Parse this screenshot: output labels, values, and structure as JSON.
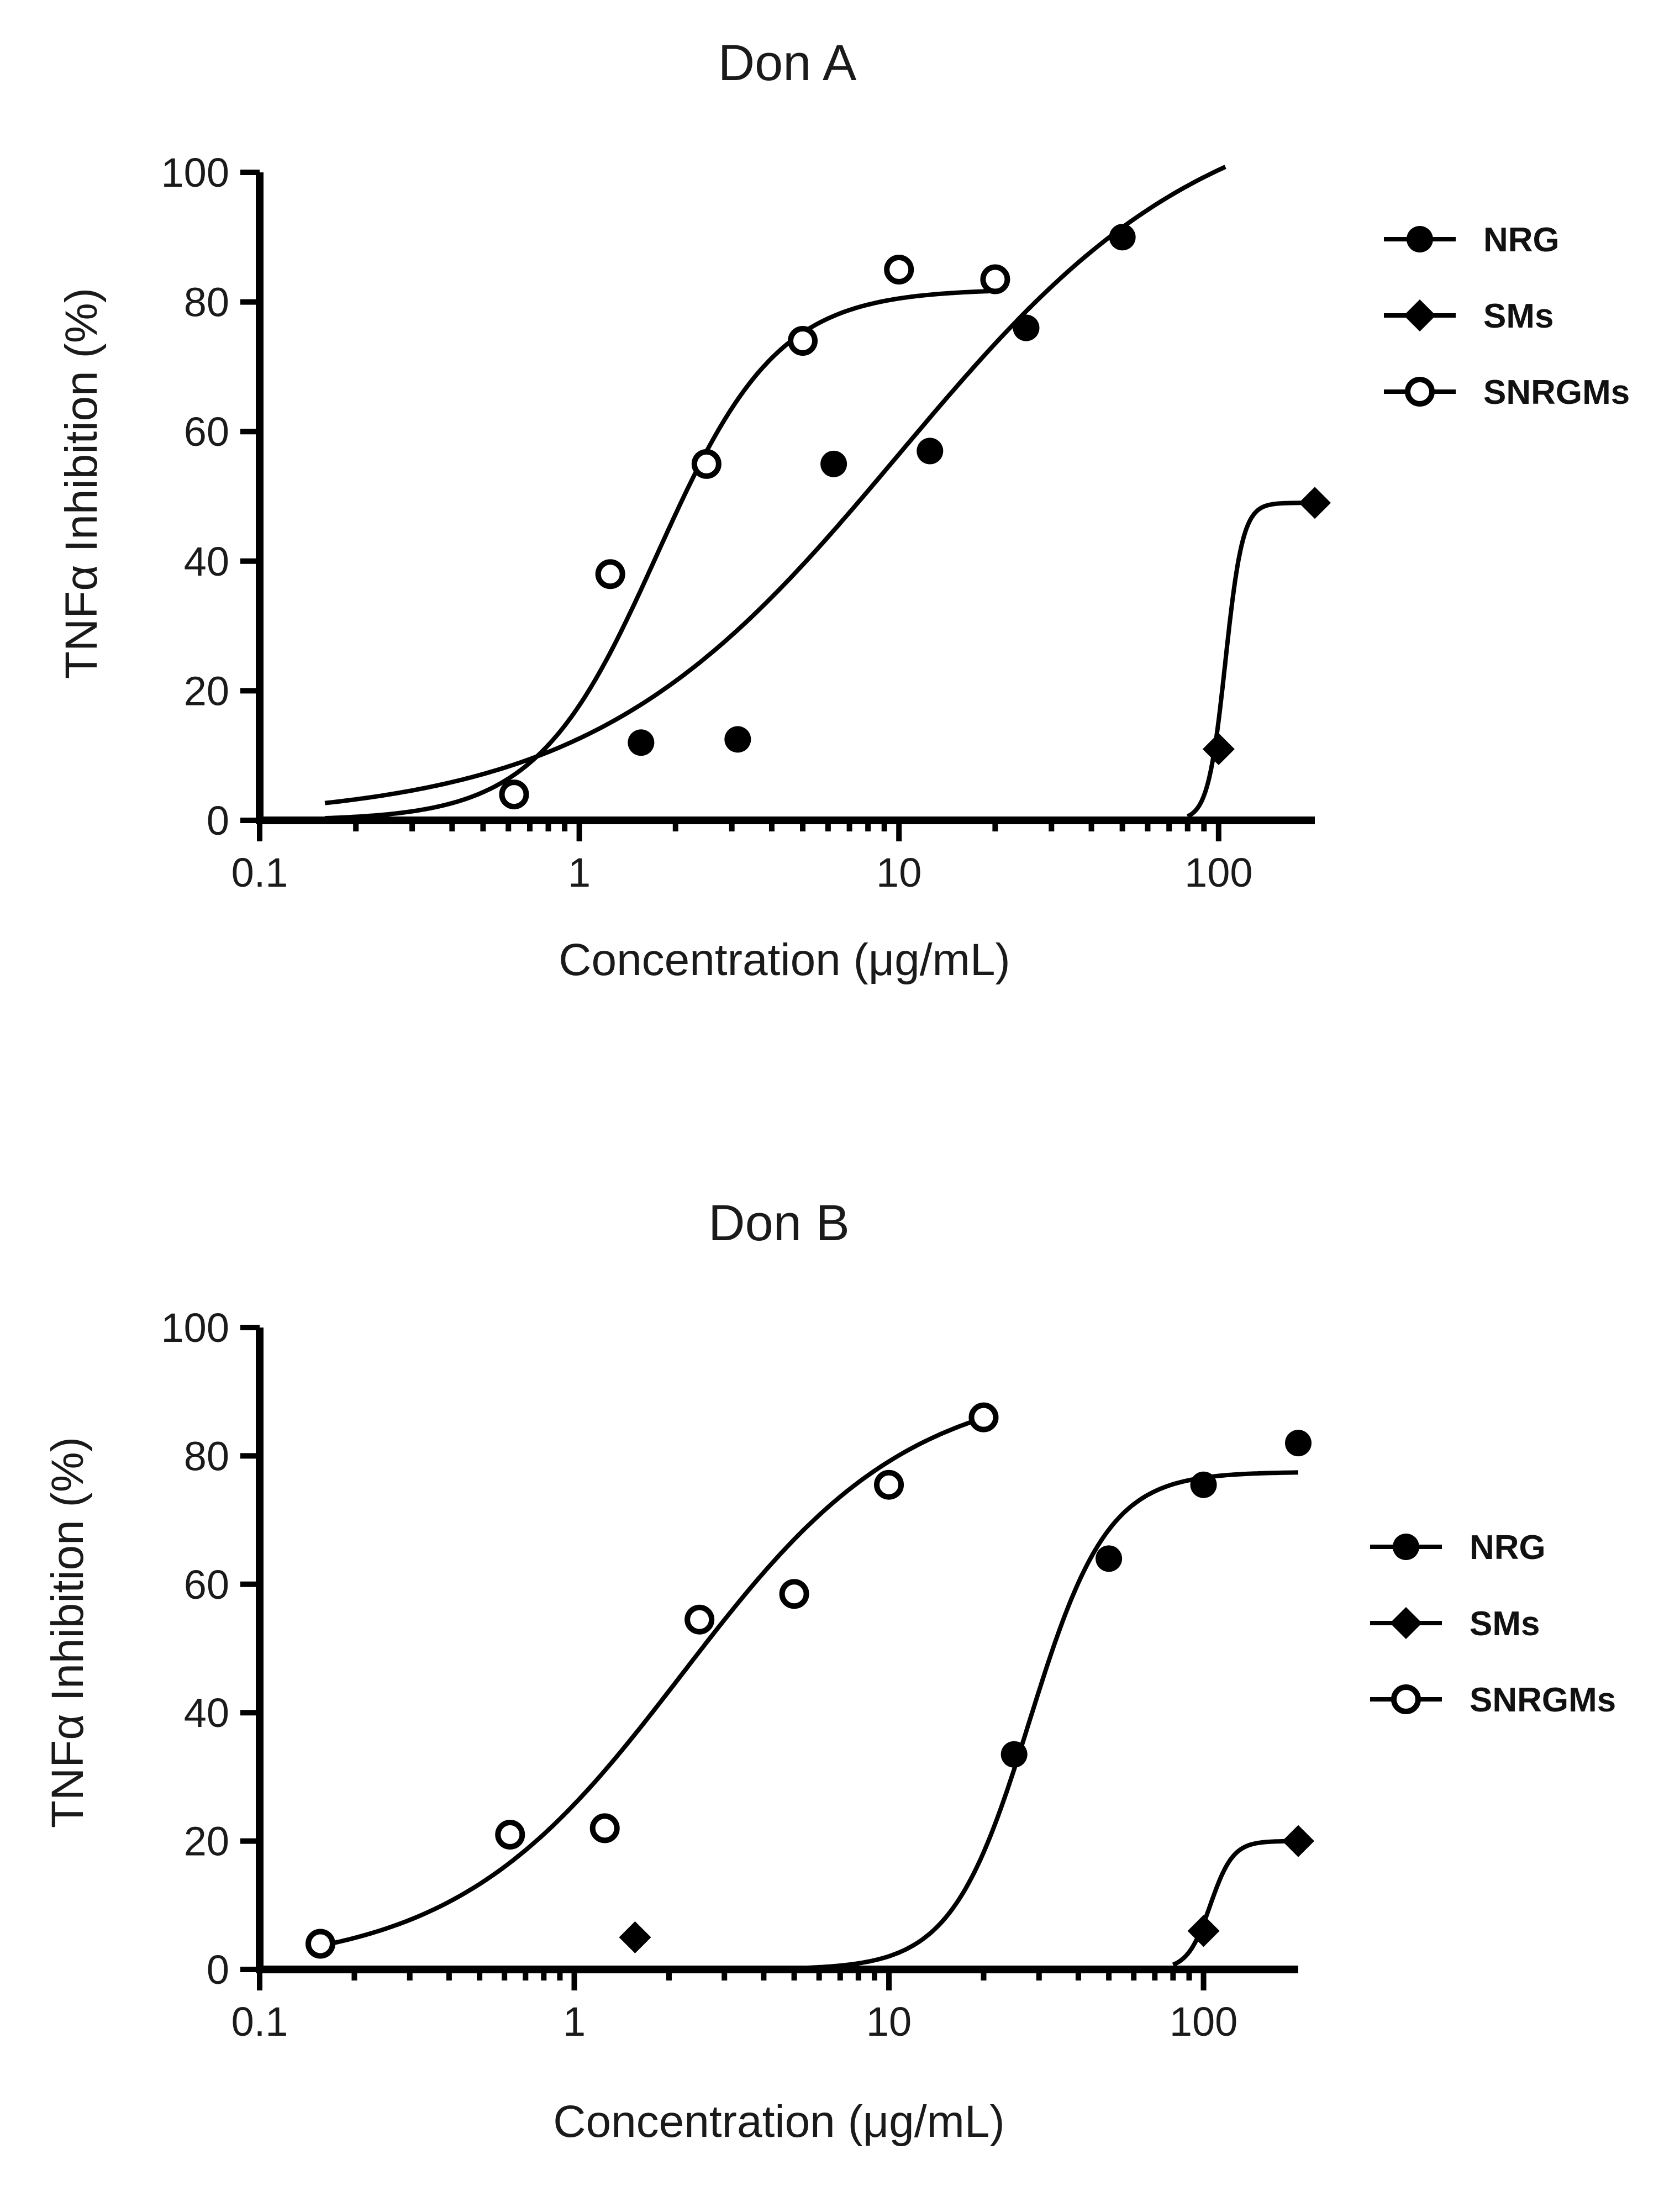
{
  "chart_data": [
    {
      "type": "scatter",
      "title": "Don A",
      "xlabel": "Concentration (μg/mL)",
      "ylabel": "TNFα Inhibition (%)",
      "xscale": "log",
      "xlim": [
        0.1,
        200
      ],
      "ylim": [
        0,
        100
      ],
      "xticks": [
        0.1,
        1,
        10,
        100
      ],
      "xtick_labels": [
        "0.1",
        "1",
        "10",
        "100"
      ],
      "yticks": [
        0,
        20,
        40,
        60,
        80,
        100
      ],
      "ytick_labels": [
        "0",
        "20",
        "40",
        "60",
        "80",
        "100"
      ],
      "legend_position": "right",
      "series": [
        {
          "name": "NRG",
          "marker": "filled-circle",
          "x": [
            1.56,
            3.13,
            6.25,
            12.5,
            25,
            50
          ],
          "y": [
            12,
            12.5,
            55,
            57,
            76,
            90
          ],
          "fit": {
            "bottom": 0,
            "top": 113,
            "ec50": 10,
            "hill": 0.9,
            "x_range": [
              0.16,
              105
            ]
          }
        },
        {
          "name": "SMs",
          "marker": "filled-diamond",
          "x": [
            100,
            200
          ],
          "y": [
            11,
            49
          ],
          "fit": {
            "bottom": 0,
            "top": 49,
            "ec50": 105,
            "hill": 16,
            "x_range": [
              80,
              200
            ]
          }
        },
        {
          "name": "SNRGMs",
          "marker": "open-circle",
          "x": [
            0.625,
            1.25,
            2.5,
            5,
            10,
            20
          ],
          "y": [
            4,
            38,
            55,
            74,
            85,
            83.5
          ],
          "fit": {
            "bottom": 0,
            "top": 82,
            "ec50": 1.75,
            "hill": 2.3,
            "x_range": [
              0.16,
              20
            ]
          }
        }
      ]
    },
    {
      "type": "scatter",
      "title": "Don B",
      "xlabel": "Concentration (μg/mL)",
      "ylabel": "TNFα Inhibition (%)",
      "xscale": "log",
      "xlim": [
        0.1,
        200
      ],
      "ylim": [
        0,
        100
      ],
      "xticks": [
        0.1,
        1,
        10,
        100
      ],
      "xtick_labels": [
        "0.1",
        "1",
        "10",
        "100"
      ],
      "yticks": [
        0,
        20,
        40,
        60,
        80,
        100
      ],
      "ytick_labels": [
        "0",
        "20",
        "40",
        "60",
        "80",
        "100"
      ],
      "legend_position": "right",
      "series": [
        {
          "name": "NRG",
          "marker": "filled-circle",
          "x": [
            25,
            50,
            100,
            200
          ],
          "y": [
            33.5,
            64,
            75.5,
            82
          ],
          "fit": {
            "bottom": 0,
            "top": 77.5,
            "ec50": 28,
            "hill": 3.5,
            "x_range": [
              3,
              200
            ]
          }
        },
        {
          "name": "SMs",
          "marker": "filled-diamond",
          "x": [
            1.56,
            100,
            200
          ],
          "y": [
            5,
            6,
            20
          ],
          "fit": {
            "bottom": 0,
            "top": 20,
            "ec50": 105,
            "hill": 12,
            "x_range": [
              80,
              200
            ]
          }
        },
        {
          "name": "SNRGMs",
          "marker": "open-circle",
          "x": [
            0.156,
            0.625,
            1.25,
            2.5,
            5,
            10,
            20
          ],
          "y": [
            4,
            21,
            22,
            54.5,
            58.5,
            75.5,
            86
          ],
          "fit": {
            "bottom": 0,
            "top": 92,
            "ec50": 2.2,
            "hill": 1.2,
            "x_range": [
              0.156,
              20
            ]
          }
        }
      ]
    }
  ]
}
